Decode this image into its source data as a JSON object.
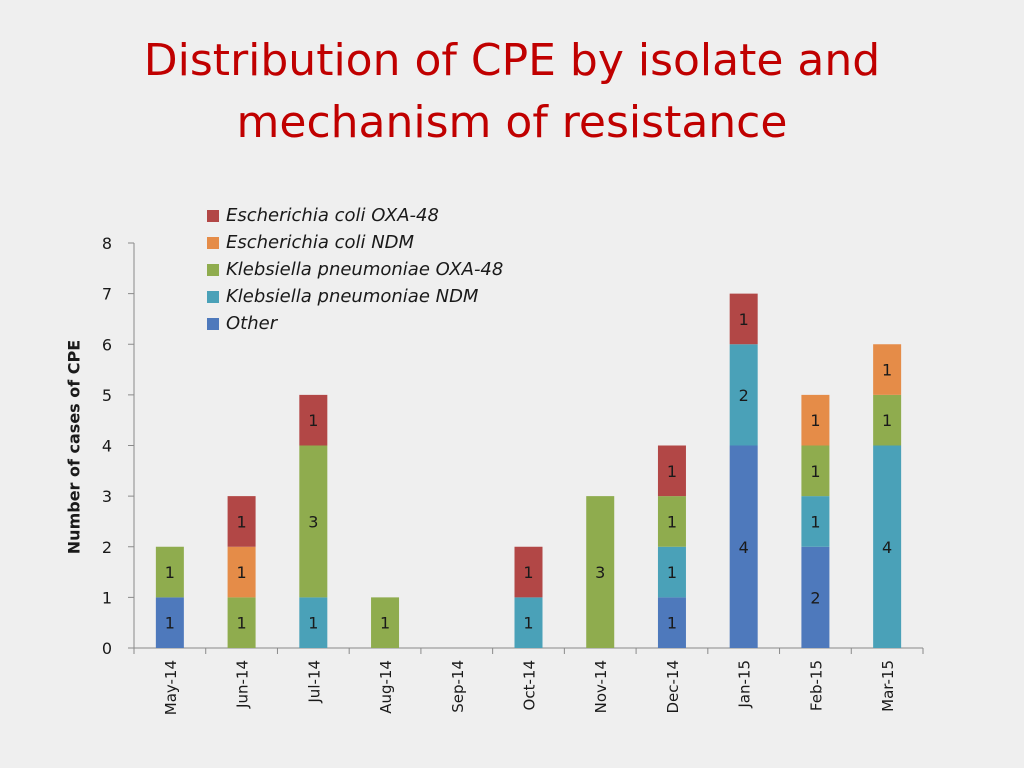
{
  "slide": {
    "title_line1": "Distribution of CPE by isolate and",
    "title_line2": "mechanism of resistance"
  },
  "chart_data": {
    "type": "bar",
    "stacked": true,
    "title": "",
    "xlabel": "",
    "ylabel": "Number of cases of CPE",
    "ylim": [
      0,
      8
    ],
    "yticks": [
      0,
      1,
      2,
      3,
      4,
      5,
      6,
      7,
      8
    ],
    "grid": false,
    "legend_position": "top-left",
    "categories": [
      "May-14",
      "Jun-14",
      "Jul-14",
      "Aug-14",
      "Sep-14",
      "Oct-14",
      "Nov-14",
      "Dec-14",
      "Jan-15",
      "Feb-15",
      "Mar-15"
    ],
    "series": [
      {
        "name": "Other",
        "color": "#4e79bc",
        "values": [
          1,
          0,
          0,
          0,
          0,
          0,
          0,
          1,
          4,
          2,
          0
        ]
      },
      {
        "name": "Klebsiella pneumoniae NDM",
        "color": "#4aa1b8",
        "values": [
          0,
          0,
          1,
          0,
          0,
          1,
          0,
          1,
          2,
          1,
          4
        ]
      },
      {
        "name": "Klebsiella pneumoniae OXA-48",
        "color": "#8fac4e",
        "values": [
          1,
          1,
          3,
          1,
          0,
          0,
          3,
          1,
          0,
          1,
          1
        ]
      },
      {
        "name": "Escherichia coli NDM",
        "color": "#e58c48",
        "values": [
          0,
          1,
          0,
          0,
          0,
          0,
          0,
          0,
          0,
          1,
          1
        ]
      },
      {
        "name": "Escherichia coli OXA-48",
        "color": "#b24746",
        "values": [
          0,
          1,
          1,
          0,
          0,
          1,
          0,
          1,
          1,
          0,
          0
        ]
      }
    ],
    "data_labels": [
      [
        "1",
        "",
        "",
        "",
        "",
        "",
        "",
        "1",
        "4",
        "2",
        ""
      ],
      [
        "",
        "",
        "1",
        "",
        "",
        "1",
        "",
        "1",
        "2",
        "1",
        "4"
      ],
      [
        "1",
        "1",
        "3",
        "1",
        "",
        "",
        "3",
        "1",
        "",
        "1",
        "1"
      ],
      [
        "",
        "1",
        "",
        "",
        "",
        "",
        "",
        "",
        "",
        "1",
        "1"
      ],
      [
        "",
        "1",
        "1",
        "",
        "",
        "1",
        "",
        "1",
        "1",
        "",
        ""
      ]
    ]
  }
}
